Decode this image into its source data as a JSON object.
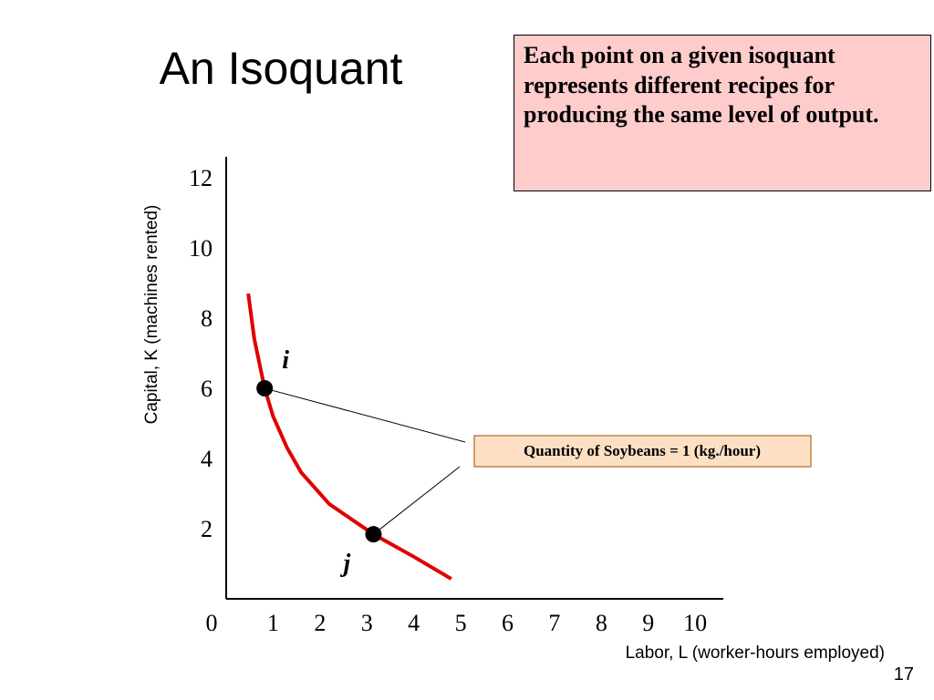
{
  "chart_data": {
    "type": "line",
    "title": "An Isoquant",
    "note": "Each point on a given isoquant represents different recipes for producing the same level of output.",
    "curve_label": "Quantity of Soybeans = 1 (kg./hour)",
    "xlabel": "Labor, L (worker-hours employed)",
    "ylabel": "Capital, K (machines rented)",
    "x": [
      0.47,
      0.6,
      0.82,
      1.0,
      1.3,
      1.6,
      2.2,
      3.14,
      4.0,
      4.8
    ],
    "series": [
      {
        "color": "#e00000",
        "values": [
          8.7,
          7.4,
          6.0,
          5.2,
          4.3,
          3.6,
          2.7,
          1.84,
          1.2,
          0.57
        ]
      }
    ],
    "points": {
      "labels": [
        "i",
        "j"
      ],
      "x": [
        0.82,
        3.14
      ],
      "y": [
        6.0,
        1.84
      ]
    },
    "xlim": [
      0,
      10.6
    ],
    "ylim": [
      0,
      12.6
    ],
    "xticks": [
      0,
      1,
      2,
      3,
      4,
      5,
      6,
      7,
      8,
      9,
      10
    ],
    "yticks": [
      2,
      4,
      6,
      8,
      10,
      12
    ],
    "page_number": "17"
  }
}
